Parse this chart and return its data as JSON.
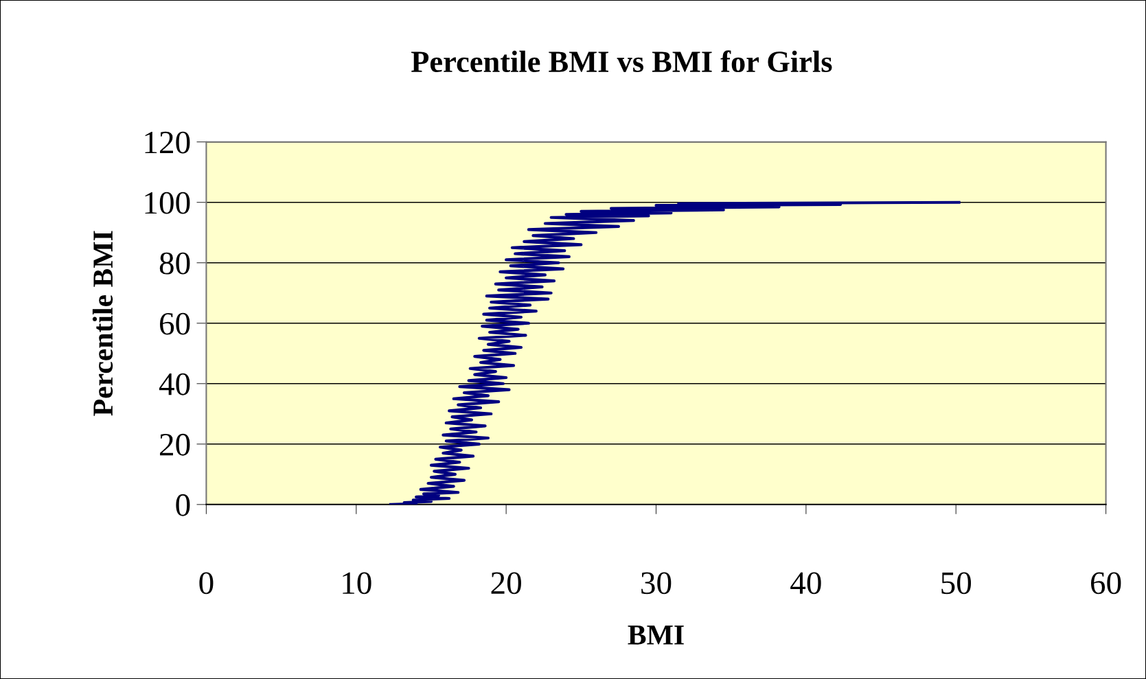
{
  "chart_data": {
    "type": "line",
    "title": "Percentile BMI vs BMI for Girls",
    "xlabel": "BMI",
    "ylabel": "Percentile BMI",
    "series": [
      {
        "color": "#000080",
        "x": [
          12.3,
          14.0,
          13.2,
          15.0,
          13.8,
          16.2,
          14.0,
          15.5,
          14.5,
          16.8,
          14.3,
          16.5,
          14.8,
          17.2,
          15.0,
          16.6,
          15.2,
          17.5,
          15.0,
          16.9,
          15.3,
          17.8,
          15.8,
          17.0,
          15.6,
          18.2,
          16.0,
          18.8,
          15.8,
          18.0,
          16.3,
          18.6,
          16.0,
          17.7,
          16.4,
          19.0,
          16.2,
          18.3,
          16.8,
          19.5,
          16.5,
          18.8,
          17.2,
          20.2,
          16.9,
          19.8,
          17.5,
          20.0,
          17.9,
          19.3,
          17.6,
          20.5,
          18.3,
          19.6,
          17.9,
          20.6,
          18.5,
          21.0,
          18.8,
          20.2,
          18.2,
          21.3,
          18.9,
          20.8,
          18.4,
          21.5,
          18.7,
          21.0,
          18.5,
          22.0,
          18.9,
          21.6,
          19.0,
          22.8,
          18.7,
          23.0,
          19.5,
          22.4,
          19.3,
          23.2,
          20.0,
          22.6,
          19.6,
          23.8,
          20.3,
          23.5,
          20.0,
          24.2,
          20.6,
          23.9,
          20.4,
          25.0,
          21.2,
          24.5,
          21.8,
          26.0,
          21.5,
          27.5,
          22.6,
          28.5,
          23.0,
          29.5,
          24.0,
          31.0,
          25.0,
          34.5,
          27.0,
          38.2,
          30.0,
          42.3,
          31.5,
          50.2
        ],
        "values": [
          0,
          0.3,
          0.6,
          1,
          1.5,
          2,
          2.5,
          3,
          3.5,
          4,
          5,
          6,
          7,
          8,
          9,
          10,
          11,
          12,
          13,
          14,
          15,
          16,
          17,
          18,
          19,
          20,
          21,
          22,
          23,
          24,
          25,
          26,
          27,
          28,
          29,
          30,
          31,
          32,
          33,
          34,
          35,
          36,
          37,
          38,
          39,
          40,
          41,
          42,
          43,
          44,
          45,
          46,
          47,
          48,
          49,
          50,
          51,
          52,
          53,
          54,
          55,
          56,
          57,
          58,
          59,
          60,
          61,
          62,
          63,
          64,
          65,
          66,
          67,
          68,
          69,
          70,
          71,
          72,
          73,
          74,
          75,
          76,
          77,
          78,
          79,
          80,
          81,
          82,
          83,
          84,
          85,
          86,
          87,
          88,
          89,
          90,
          91,
          92,
          93,
          94,
          95,
          95.5,
          96,
          96.5,
          97,
          97.5,
          98,
          98.5,
          99,
          99.3,
          99.6,
          100
        ]
      }
    ],
    "xlim": [
      0,
      60
    ],
    "xticks": [
      0,
      10,
      20,
      30,
      40,
      50,
      60
    ],
    "ylim": [
      0,
      120
    ],
    "yticks": [
      0,
      20,
      40,
      60,
      80,
      100,
      120
    ],
    "grid": "y",
    "legend": false,
    "marker": "none",
    "line_style": "solid"
  }
}
